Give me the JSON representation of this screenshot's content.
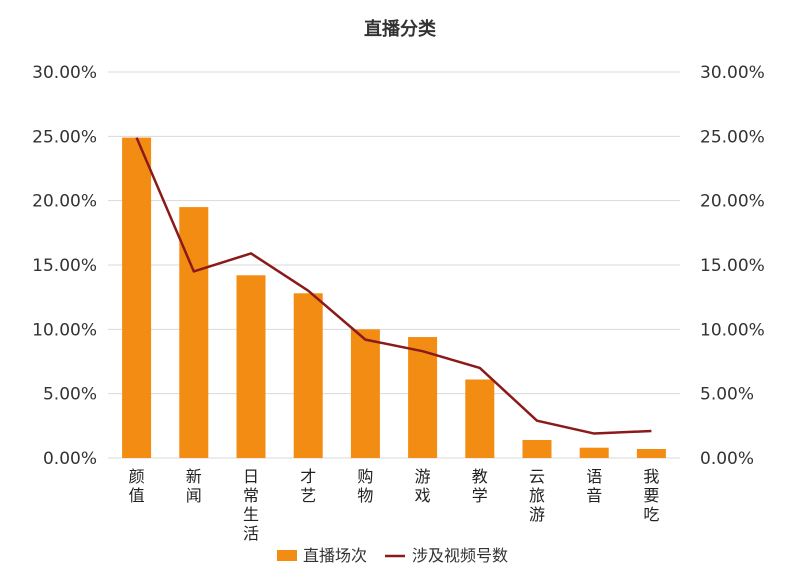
{
  "chart_data": {
    "type": "bar+line",
    "title": "直播分类",
    "categories": [
      "颜值",
      "新闻",
      "日常生活",
      "才艺",
      "购物",
      "游戏",
      "教学",
      "云旅游",
      "语音",
      "我要吃"
    ],
    "series": [
      {
        "name": "直播场次",
        "type": "bar",
        "axis": "left",
        "values": [
          0.249,
          0.195,
          0.142,
          0.128,
          0.1,
          0.094,
          0.061,
          0.014,
          0.008,
          0.007
        ]
      },
      {
        "name": "涉及视频号数",
        "type": "line",
        "axis": "right",
        "values": [
          0.249,
          0.145,
          0.159,
          0.13,
          0.092,
          0.083,
          0.07,
          0.029,
          0.019,
          0.021
        ]
      }
    ],
    "ylim": [
      0,
      0.3
    ],
    "y2lim": [
      0,
      0.3
    ],
    "yticks": [
      "0.00%",
      "5.00%",
      "10.00%",
      "15.00%",
      "20.00%",
      "25.00%",
      "30.00%"
    ],
    "grid": true,
    "legend": "bottom",
    "colors": {
      "bar": "#F28C12",
      "line": "#8B1A1A",
      "grid": "#D9D9D9"
    }
  }
}
